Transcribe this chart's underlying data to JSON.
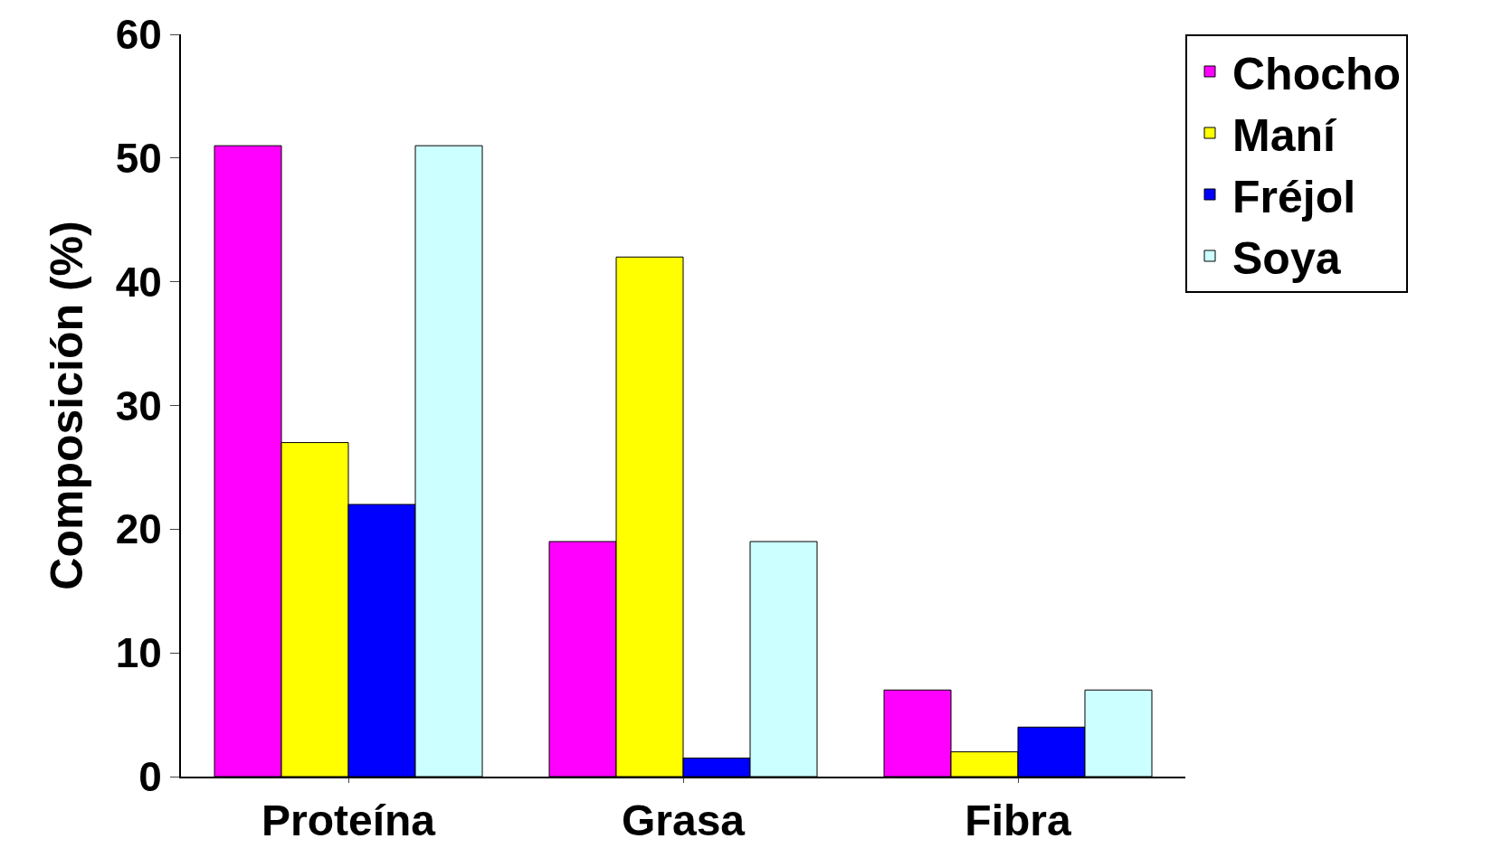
{
  "chart_data": {
    "type": "bar",
    "ylabel": "Composición (%)",
    "categories": [
      "Proteína",
      "Grasa",
      "Fibra"
    ],
    "series": [
      {
        "name": "Chocho",
        "color": "#ff00ff",
        "values": [
          51,
          19,
          7
        ]
      },
      {
        "name": "Maní",
        "color": "#ffff00",
        "values": [
          27,
          42,
          2
        ]
      },
      {
        "name": "Fréjol",
        "color": "#0000ff",
        "values": [
          22,
          1.5,
          4
        ]
      },
      {
        "name": "Soya",
        "color": "#ccffff",
        "values": [
          51,
          19,
          7
        ]
      }
    ],
    "ylim": [
      0,
      60
    ],
    "yticks": [
      0,
      10,
      20,
      30,
      40,
      50,
      60
    ],
    "grid": false,
    "legend": "top right"
  }
}
